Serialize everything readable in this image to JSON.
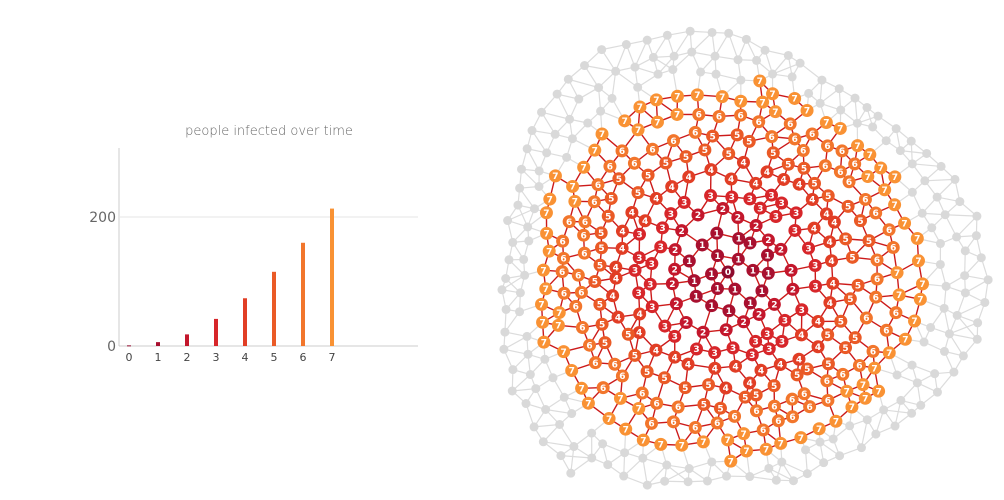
{
  "chart_data": {
    "type": "bar",
    "title": "people infected over time",
    "categories": [
      "0",
      "1",
      "2",
      "3",
      "4",
      "5",
      "6",
      "7"
    ],
    "values": [
      1,
      6,
      18,
      42,
      74,
      115,
      160,
      213
    ],
    "ylim": [
      0,
      310
    ],
    "yticks": [
      0,
      200
    ],
    "xlabel": "",
    "ylabel": "",
    "grid": true
  },
  "network": {
    "description_free": true,
    "max_generation": 7
  },
  "colors": {
    "generations": [
      "#8e0b2d",
      "#a8102f",
      "#c3172c",
      "#d7262a",
      "#e13e25",
      "#ea5a26",
      "#f2762c",
      "#f99234"
    ],
    "uninfected_node": "#d9d9d9",
    "uninfected_edge": "#dcdcdc",
    "infection_edge": "#cc1a1a",
    "axis": "#cccccc",
    "gridline": "#e6e6e6"
  }
}
